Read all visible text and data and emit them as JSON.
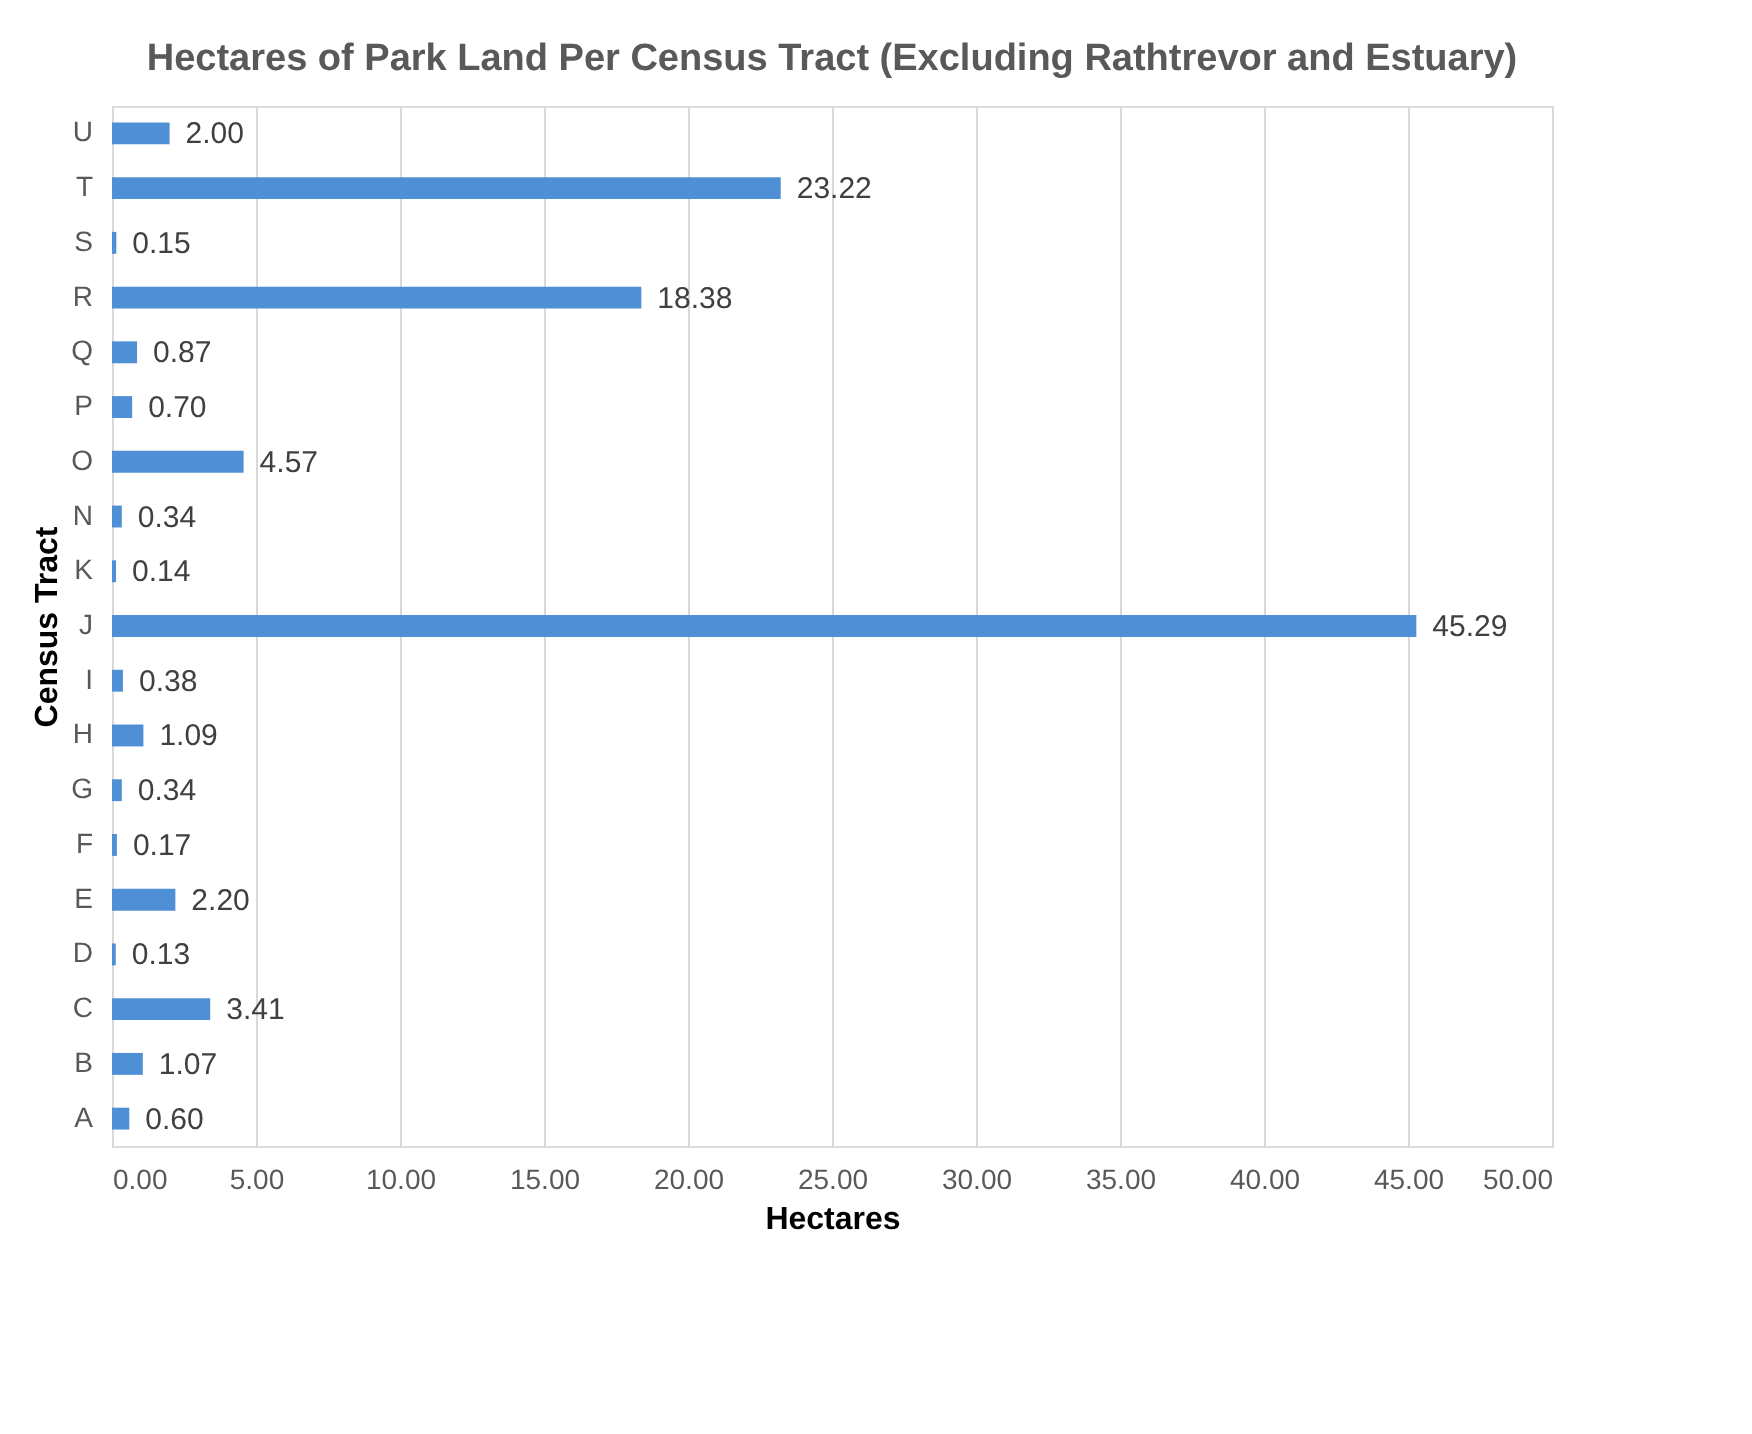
{
  "chart_data": {
    "type": "bar",
    "orientation": "horizontal",
    "title": "Hectares of Park Land Per Census Tract (Excluding Rathtrevor and Estuary)",
    "xlabel": "Hectares",
    "ylabel": "Census Tract",
    "categories": [
      "U",
      "T",
      "S",
      "R",
      "Q",
      "P",
      "O",
      "N",
      "K",
      "J",
      "I",
      "H",
      "G",
      "F",
      "E",
      "D",
      "C",
      "B",
      "A"
    ],
    "values": [
      2.0,
      23.22,
      0.15,
      18.38,
      0.87,
      0.7,
      4.57,
      0.34,
      0.14,
      45.29,
      0.38,
      1.09,
      0.34,
      0.17,
      2.2,
      0.13,
      3.41,
      1.07,
      0.6
    ],
    "value_labels": [
      "2.00",
      "23.22",
      "0.15",
      "18.38",
      "0.87",
      "0.70",
      "4.57",
      "0.34",
      "0.14",
      "45.29",
      "0.38",
      "1.09",
      "0.34",
      "0.17",
      "2.20",
      "0.13",
      "3.41",
      "1.07",
      "0.60"
    ],
    "color": "#4f8fd6",
    "xlim": [
      0,
      50
    ],
    "xticks": [
      {
        "value": 0,
        "label": "0.00"
      },
      {
        "value": 5,
        "label": "5.00"
      },
      {
        "value": 10,
        "label": "10.00"
      },
      {
        "value": 15,
        "label": "15.00"
      },
      {
        "value": 20,
        "label": "20.00"
      },
      {
        "value": 25,
        "label": "25.00"
      },
      {
        "value": 30,
        "label": "30.00"
      },
      {
        "value": 35,
        "label": "35.00"
      },
      {
        "value": 40,
        "label": "40.00"
      },
      {
        "value": 45,
        "label": "45.00"
      },
      {
        "value": 50,
        "label": "50.00"
      }
    ],
    "grid": "x"
  }
}
